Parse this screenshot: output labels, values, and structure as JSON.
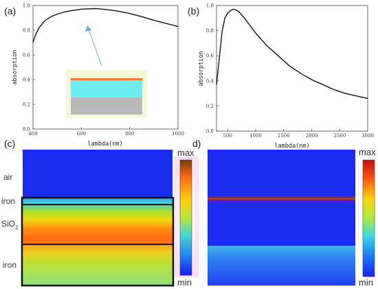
{
  "panels": {
    "a": "(a)",
    "b": "(b)",
    "c": "(c)",
    "d": "d)"
  },
  "chart_data": [
    {
      "panel": "(a)",
      "type": "line",
      "xlabel": "lambda(nm)",
      "ylabel": "absorption",
      "xlim": [
        400,
        1000
      ],
      "ylim": [
        0,
        1.0
      ],
      "xticks": [
        "400",
        "600",
        "800",
        "1000"
      ],
      "yticks": [
        "0.0",
        "0.2",
        "0.4",
        "0.6",
        "0.8",
        "1.0"
      ],
      "x": [
        400,
        410,
        425,
        450,
        475,
        500,
        525,
        550,
        575,
        600,
        625,
        650,
        675,
        700,
        750,
        800,
        850,
        900,
        950,
        1000
      ],
      "y": [
        0.7,
        0.76,
        0.82,
        0.88,
        0.91,
        0.93,
        0.945,
        0.955,
        0.963,
        0.97,
        0.973,
        0.975,
        0.973,
        0.968,
        0.955,
        0.935,
        0.91,
        0.88,
        0.855,
        0.83
      ]
    },
    {
      "panel": "(b)",
      "type": "line",
      "xlabel": "lambda(nm)",
      "ylabel": "absorption",
      "xlim": [
        300,
        3000
      ],
      "ylim": [
        0,
        1.0
      ],
      "xticks": [
        "500",
        "1000",
        "1500",
        "2000",
        "2500",
        "3000"
      ],
      "yticks": [
        "0.0",
        "0.2",
        "0.4",
        "0.6",
        "0.8",
        "1.0"
      ],
      "x": [
        300,
        350,
        400,
        450,
        500,
        550,
        600,
        650,
        700,
        800,
        900,
        1000,
        1200,
        1400,
        1600,
        1800,
        2000,
        2200,
        2400,
        2600,
        2800,
        3000
      ],
      "y": [
        0.37,
        0.58,
        0.79,
        0.9,
        0.94,
        0.96,
        0.97,
        0.965,
        0.95,
        0.9,
        0.84,
        0.78,
        0.68,
        0.6,
        0.52,
        0.46,
        0.41,
        0.37,
        0.33,
        0.3,
        0.28,
        0.26
      ]
    },
    {
      "panel": "(c)",
      "type": "heatmap",
      "layer_labels": {
        "air": "air",
        "iron_top": "iron",
        "sio2_main": "SiO",
        "sio2_sub": "2",
        "iron_bottom": "iron"
      },
      "colorbar": {
        "max": "max",
        "min": "min"
      }
    },
    {
      "panel": "d)",
      "type": "heatmap",
      "colorbar": {
        "max": "max",
        "min": "min"
      }
    }
  ],
  "colors": {
    "curve": "#111111",
    "field_low": "#1a2bf0",
    "field_high": "#e83a10",
    "inset_bg": "#f4f7d8",
    "inset_film": "#f07a3a",
    "inset_sio2": "#6eeeee",
    "inset_substrate": "#b9b9b9",
    "arrow": "#6aa8e0"
  }
}
